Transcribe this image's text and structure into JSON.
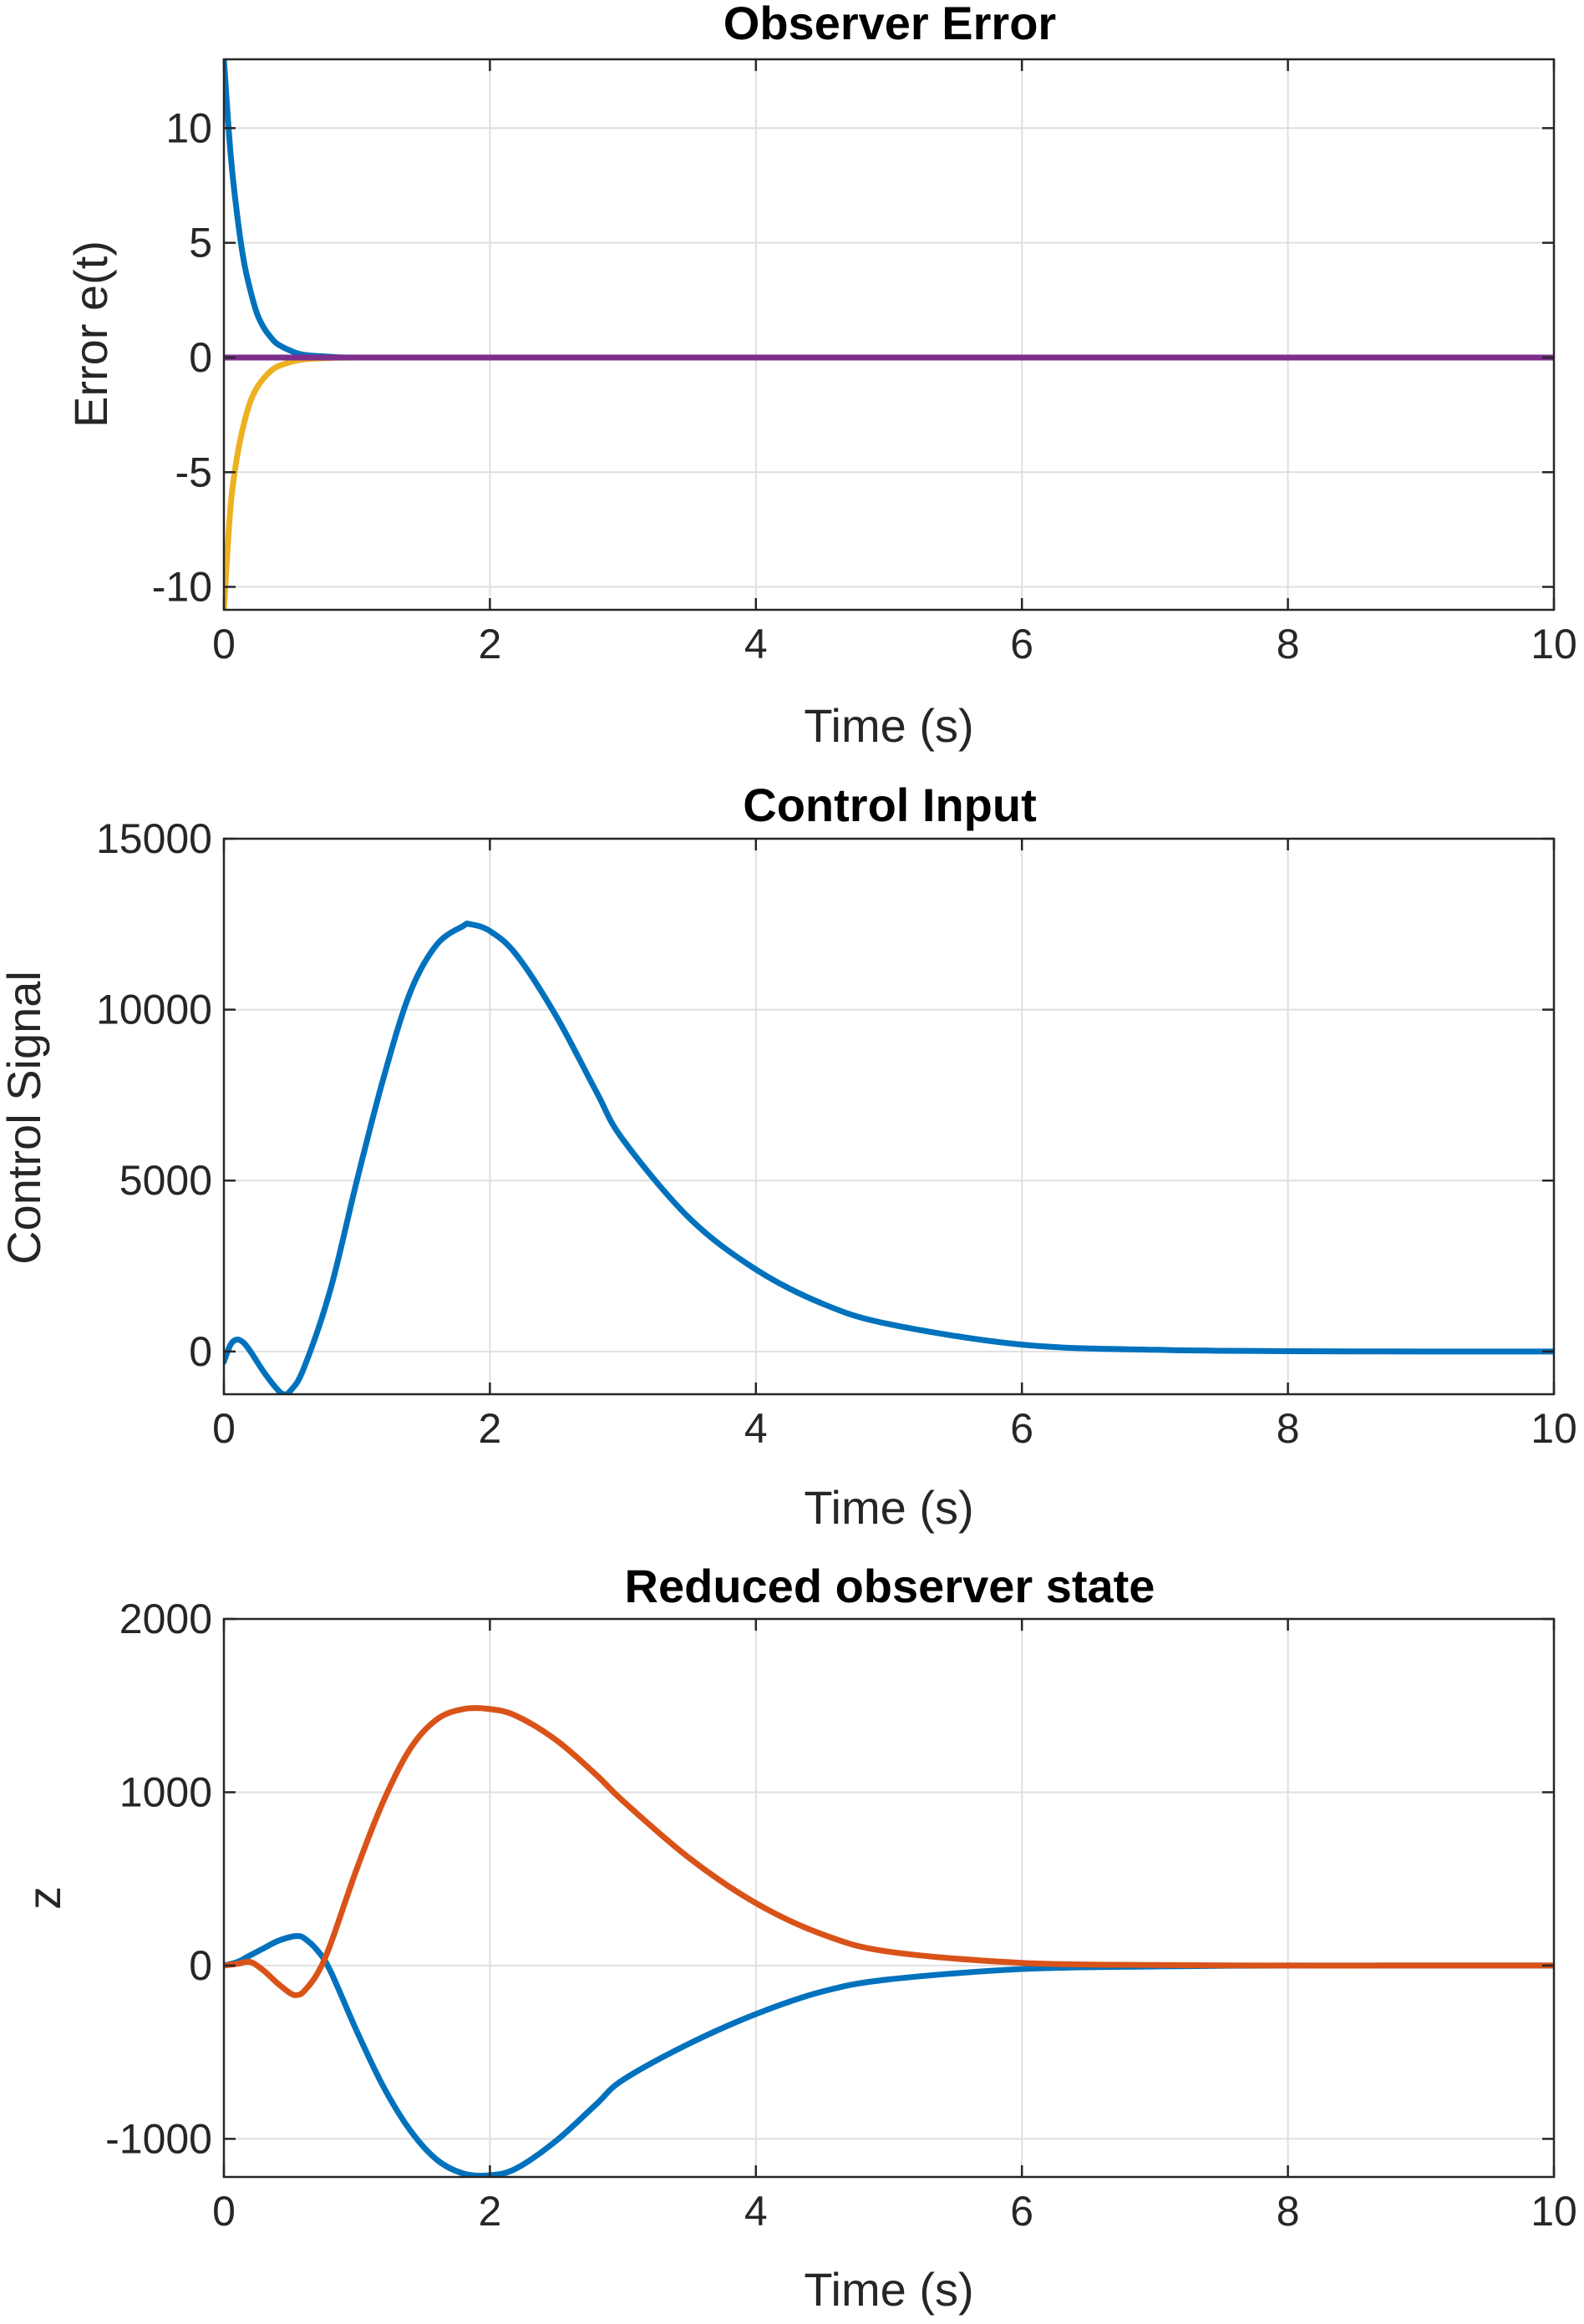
{
  "chart_data": [
    {
      "type": "line",
      "title": "Observer Error",
      "xlabel": "Time (s)",
      "ylabel": "Error e(t)",
      "xlim": [
        0,
        10
      ],
      "ylim": [
        -11,
        13
      ],
      "xticks": [
        "0",
        "2",
        "4",
        "6",
        "8",
        "10"
      ],
      "yticks": [
        "-10",
        "-5",
        "0",
        "5",
        "10"
      ],
      "ytick_values": [
        -10,
        -5,
        0,
        5,
        10
      ],
      "grid": true,
      "x": [
        0,
        0.05,
        0.1,
        0.15,
        0.2,
        0.25,
        0.3,
        0.35,
        0.4,
        0.5,
        0.6,
        0.8,
        1.0,
        2,
        4,
        6,
        8,
        10
      ],
      "series": [
        {
          "color": "#0072BD",
          "values": [
            13,
            8.9,
            6.2,
            4.2,
            2.9,
            1.9,
            1.3,
            0.9,
            0.6,
            0.3,
            0.12,
            0.03,
            0.0,
            0,
            0,
            0,
            0,
            0
          ]
        },
        {
          "color": "#EDB120",
          "values": [
            -11,
            -6.5,
            -4.3,
            -2.9,
            -1.9,
            -1.3,
            -0.9,
            -0.6,
            -0.4,
            -0.2,
            -0.08,
            -0.02,
            0.0,
            0,
            0,
            0,
            0,
            0
          ]
        },
        {
          "color": "#7E2F8E",
          "values": [
            0,
            0,
            0,
            0,
            0,
            0,
            0,
            0,
            0,
            0,
            0,
            0,
            0,
            0,
            0,
            0,
            0,
            0
          ]
        }
      ]
    },
    {
      "type": "line",
      "title": "Control Input",
      "xlabel": "Time (s)",
      "ylabel": "Control Signal",
      "xlim": [
        0,
        10
      ],
      "ylim": [
        -1250,
        15000
      ],
      "xticks": [
        "0",
        "2",
        "4",
        "6",
        "8",
        "10"
      ],
      "yticks": [
        "0",
        "5000",
        "10000",
        "15000"
      ],
      "ytick_values": [
        0,
        5000,
        10000,
        15000
      ],
      "grid": true,
      "x": [
        0,
        0.05,
        0.1,
        0.15,
        0.2,
        0.3,
        0.4,
        0.45,
        0.5,
        0.6,
        0.8,
        1.0,
        1.2,
        1.4,
        1.6,
        1.8,
        1.85,
        2.0,
        2.2,
        2.5,
        2.8,
        3.0,
        3.5,
        4.0,
        4.5,
        5.0,
        6.0,
        7.0,
        8.0,
        9.0,
        10.0
      ],
      "series": [
        {
          "color": "#0072BD",
          "values": [
            -300,
            200,
            350,
            250,
            0,
            -600,
            -1100,
            -1250,
            -1150,
            -500,
            1800,
            5000,
            8000,
            10500,
            11900,
            12450,
            12500,
            12300,
            11600,
            9800,
            7600,
            6200,
            3900,
            2400,
            1400,
            800,
            200,
            50,
            10,
            0,
            0
          ]
        }
      ]
    },
    {
      "type": "line",
      "title": "Reduced observer state",
      "xlabel": "Time (s)",
      "ylabel": "z",
      "xlim": [
        0,
        10
      ],
      "ylim": [
        -1220,
        2000
      ],
      "xticks": [
        "0",
        "2",
        "4",
        "6",
        "8",
        "10"
      ],
      "yticks": [
        "-1000",
        "0",
        "1000",
        "2000"
      ],
      "ytick_values": [
        -1000,
        0,
        1000,
        2000
      ],
      "grid": true,
      "x": [
        0,
        0.1,
        0.2,
        0.3,
        0.4,
        0.5,
        0.55,
        0.6,
        0.7,
        0.8,
        1.0,
        1.2,
        1.4,
        1.6,
        1.8,
        2.0,
        2.2,
        2.5,
        2.8,
        3.0,
        3.5,
        4.0,
        4.5,
        5.0,
        6.0,
        7.0,
        8.0,
        9.0,
        10.0
      ],
      "series": [
        {
          "color": "#0072BD",
          "values": [
            0,
            20,
            60,
            100,
            140,
            165,
            170,
            160,
            90,
            -30,
            -380,
            -700,
            -950,
            -1120,
            -1200,
            -1210,
            -1170,
            -1010,
            -800,
            -660,
            -450,
            -280,
            -150,
            -80,
            -20,
            -5,
            0,
            0,
            0
          ]
        },
        {
          "color": "#D95319",
          "values": [
            0,
            10,
            20,
            -30,
            -100,
            -160,
            -170,
            -150,
            -50,
            120,
            560,
            950,
            1250,
            1420,
            1480,
            1480,
            1440,
            1300,
            1100,
            950,
            620,
            360,
            180,
            80,
            15,
            3,
            0,
            0,
            0
          ]
        }
      ]
    }
  ]
}
